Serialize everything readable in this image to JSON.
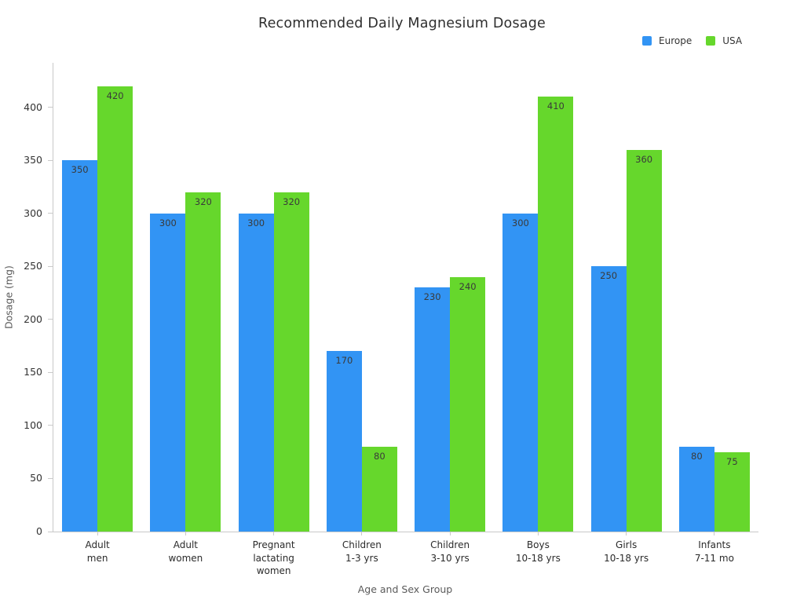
{
  "chart_data": {
    "type": "bar",
    "title": "Recommended Daily Magnesium Dosage",
    "xlabel": "Age and Sex Group",
    "ylabel": "Dosage (mg)",
    "categories": [
      [
        "Adult",
        "men"
      ],
      [
        "Adult",
        "women"
      ],
      [
        "Pregnant",
        "lactating",
        "women"
      ],
      [
        "Children",
        "1-3 yrs"
      ],
      [
        "Children",
        "3-10 yrs"
      ],
      [
        "Boys",
        "10-18 yrs"
      ],
      [
        "Girls",
        "10-18 yrs"
      ],
      [
        "Infants",
        "7-11 mo"
      ]
    ],
    "series": [
      {
        "name": "Europe",
        "color": "#3294f4",
        "values": [
          350,
          300,
          300,
          170,
          230,
          300,
          250,
          80
        ]
      },
      {
        "name": "USA",
        "color": "#66d72c",
        "values": [
          420,
          320,
          320,
          80,
          240,
          410,
          360,
          75
        ]
      }
    ],
    "yticks": [
      0,
      50,
      100,
      150,
      200,
      250,
      300,
      350,
      400
    ],
    "ylim": [
      0,
      442
    ],
    "grid": false,
    "legend_position": "top-right",
    "bar_value_labels": "inside-top",
    "colors": {
      "axis_line": "#c9c9c9",
      "tick_label": "#333333",
      "axis_title": "#5a5a5a",
      "title_text": "#2e2e2e",
      "value_label": "#3a3a3a"
    }
  }
}
